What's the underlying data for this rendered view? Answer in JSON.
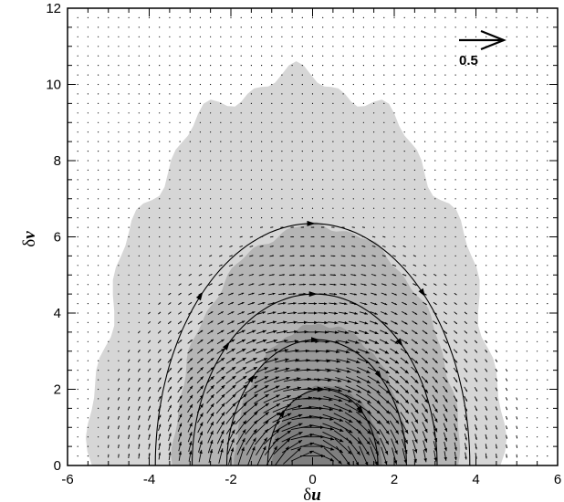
{
  "chart_data": {
    "type": "vector-field-contour",
    "xlabel": "δu",
    "ylabel": "δv",
    "xlim": [
      -6,
      6
    ],
    "ylim": [
      0,
      12
    ],
    "xticks": [
      "-6",
      "-4",
      "-2",
      "0",
      "2",
      "4",
      "6"
    ],
    "yticks": [
      "0",
      "2",
      "4",
      "6",
      "8",
      "10",
      "12"
    ],
    "grid": false,
    "colors": {
      "level1": "#d6d6d6",
      "level2": "#b5b5b5",
      "level3": "#9a9a9a",
      "level4": "#7f7f7f",
      "arrow": "#000000",
      "streamline": "#000000"
    },
    "contour_levels": [
      {
        "level": 1,
        "center": [
          -0.4,
          0.0
        ],
        "rx": 5.0,
        "ry": 10.2
      },
      {
        "level": 2,
        "center": [
          0.1,
          0.0
        ],
        "rx": 3.5,
        "ry": 6.3
      },
      {
        "level": 3,
        "center": [
          0.2,
          0.0
        ],
        "rx": 2.1,
        "ry": 3.7
      },
      {
        "level": 4,
        "center": [
          0.35,
          0.0
        ],
        "rx": 1.35,
        "ry": 2.1
      }
    ],
    "streamlines": [
      {
        "center": [
          0.0,
          0.0
        ],
        "rx": 3.85,
        "ry": 6.35
      },
      {
        "center": [
          0.05,
          0.0
        ],
        "rx": 3.0,
        "ry": 4.5
      },
      {
        "center": [
          0.1,
          0.0
        ],
        "rx": 2.2,
        "ry": 3.3
      },
      {
        "center": [
          0.25,
          0.0
        ],
        "rx": 1.35,
        "ry": 2.0
      }
    ],
    "vector_field": {
      "x_range": [
        -5.75,
        5.75
      ],
      "y_range": [
        0.25,
        11.75
      ],
      "spacing": 0.25,
      "note": "circulating clockwise around (0,0), magnitude largest near origin"
    },
    "reference_vector": {
      "length": 0.5,
      "label": "0.5",
      "position": [
        4.9,
        11.2
      ]
    }
  }
}
